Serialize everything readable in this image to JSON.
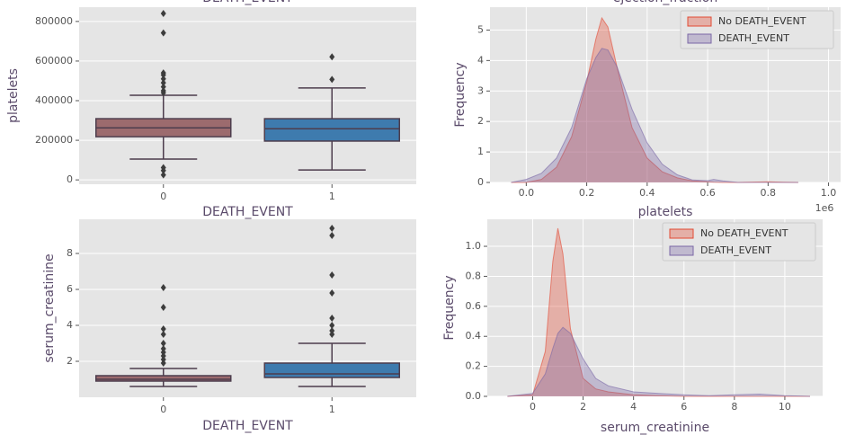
{
  "chart_data": [
    {
      "type": "box",
      "title": "DEATH_EVENT",
      "xlabel": "DEATH_EVENT",
      "ylabel": "platelets",
      "categories": [
        "0",
        "1"
      ],
      "colors": [
        "#9c6b6e",
        "#3e7bae"
      ],
      "boxes": [
        {
          "whislo": 105000,
          "q1": 218000,
          "median": 263000,
          "q3": 309000,
          "whishi": 427000,
          "fliers": [
            840000,
            742000,
            540000,
            530000,
            510000,
            490000,
            470000,
            450000,
            440000,
            62000,
            47000,
            25000
          ]
        },
        {
          "whislo": 50000,
          "q1": 196000,
          "median": 258000,
          "q3": 309000,
          "whishi": 464000,
          "fliers": [
            621000,
            507000
          ]
        }
      ],
      "ylim": [
        -22000,
        872000
      ],
      "yticks": [
        0,
        200000,
        400000,
        600000,
        800000
      ],
      "grid": true
    },
    {
      "type": "kde",
      "title": "ejection_fraction",
      "xlabel": "platelets",
      "ylabel": "Frequency",
      "offset_text": "1e6",
      "x": [
        -0.05,
        0,
        0.05,
        0.1,
        0.15,
        0.2,
        0.23,
        0.25,
        0.27,
        0.3,
        0.35,
        0.4,
        0.45,
        0.5,
        0.55,
        0.6,
        0.62,
        0.65,
        0.7,
        0.8,
        0.85,
        0.9
      ],
      "series": [
        {
          "name": "No DEATH_EVENT",
          "color": "#E24A33",
          "values": [
            0,
            0,
            0.1,
            0.5,
            1.5,
            3.3,
            4.7,
            5.4,
            5.1,
            3.8,
            1.8,
            0.8,
            0.35,
            0.15,
            0.05,
            0.02,
            0.01,
            0,
            0,
            0.02,
            0.01,
            0
          ]
        },
        {
          "name": "DEATH_EVENT",
          "color": "#7A68A6",
          "values": [
            0,
            0.1,
            0.3,
            0.8,
            1.8,
            3.4,
            4.1,
            4.4,
            4.35,
            3.8,
            2.4,
            1.3,
            0.6,
            0.25,
            0.08,
            0.06,
            0.1,
            0.05,
            0,
            0,
            0,
            0
          ]
        }
      ],
      "xlim": [
        -0.12,
        1.04
      ],
      "ylim": [
        0,
        5.75
      ],
      "xticks": [
        {
          "value": 0,
          "label": "0.0"
        },
        {
          "value": 0.2,
          "label": "0.2"
        },
        {
          "value": 0.4,
          "label": "0.4"
        },
        {
          "value": 0.6,
          "label": "0.6"
        },
        {
          "value": 0.8,
          "label": "0.8"
        },
        {
          "value": 1,
          "label": "1.0"
        }
      ],
      "yticks": [
        0,
        1,
        2,
        3,
        4,
        5
      ],
      "grid": true,
      "legend": "upper right"
    },
    {
      "type": "box",
      "xlabel": "DEATH_EVENT",
      "ylabel": "serum_creatinine",
      "categories": [
        "0",
        "1"
      ],
      "colors": [
        "#9c6b6e",
        "#3e7bae"
      ],
      "boxes": [
        {
          "whislo": 0.6,
          "q1": 0.9,
          "median": 1.0,
          "q3": 1.2,
          "whishi": 1.6,
          "fliers": [
            6.1,
            5.0,
            3.8,
            3.5,
            3.0,
            2.7,
            2.5,
            2.3,
            2.1,
            1.9
          ]
        },
        {
          "whislo": 0.6,
          "q1": 1.1,
          "median": 1.3,
          "q3": 1.9,
          "whishi": 3.0,
          "fliers": [
            9.4,
            9.0,
            6.8,
            5.8,
            4.4,
            4.0,
            3.7,
            3.5
          ]
        }
      ],
      "ylim": [
        0,
        9.9
      ],
      "yticks": [
        2,
        4,
        6,
        8
      ],
      "grid": true
    },
    {
      "type": "kde",
      "xlabel": "serum_creatinine",
      "ylabel": "Frequency",
      "x": [
        -1,
        0,
        0.5,
        0.8,
        1,
        1.2,
        1.5,
        2,
        2.5,
        3,
        4,
        5,
        6,
        7,
        8,
        9,
        10,
        11
      ],
      "series": [
        {
          "name": "No DEATH_EVENT",
          "color": "#E24A33",
          "values": [
            0,
            0.01,
            0.3,
            0.9,
            1.12,
            0.95,
            0.45,
            0.12,
            0.05,
            0.03,
            0.01,
            0.005,
            0,
            0,
            0,
            0,
            0,
            0
          ]
        },
        {
          "name": "DEATH_EVENT",
          "color": "#7A68A6",
          "values": [
            0,
            0.02,
            0.15,
            0.32,
            0.42,
            0.46,
            0.42,
            0.25,
            0.12,
            0.07,
            0.03,
            0.02,
            0.01,
            0.005,
            0.01,
            0.015,
            0.005,
            0
          ]
        }
      ],
      "xlim": [
        -1.8,
        11.5
      ],
      "ylim": [
        0,
        1.18
      ],
      "xticks": [
        0,
        2,
        4,
        6,
        8,
        10
      ],
      "yticks": [
        {
          "value": 0,
          "label": "0.0"
        },
        {
          "value": 0.2,
          "label": "0.2"
        },
        {
          "value": 0.4,
          "label": "0.4"
        },
        {
          "value": 0.6,
          "label": "0.6"
        },
        {
          "value": 0.8,
          "label": "0.8"
        },
        {
          "value": 1,
          "label": "1.0"
        }
      ],
      "grid": true,
      "legend": "upper right"
    }
  ]
}
